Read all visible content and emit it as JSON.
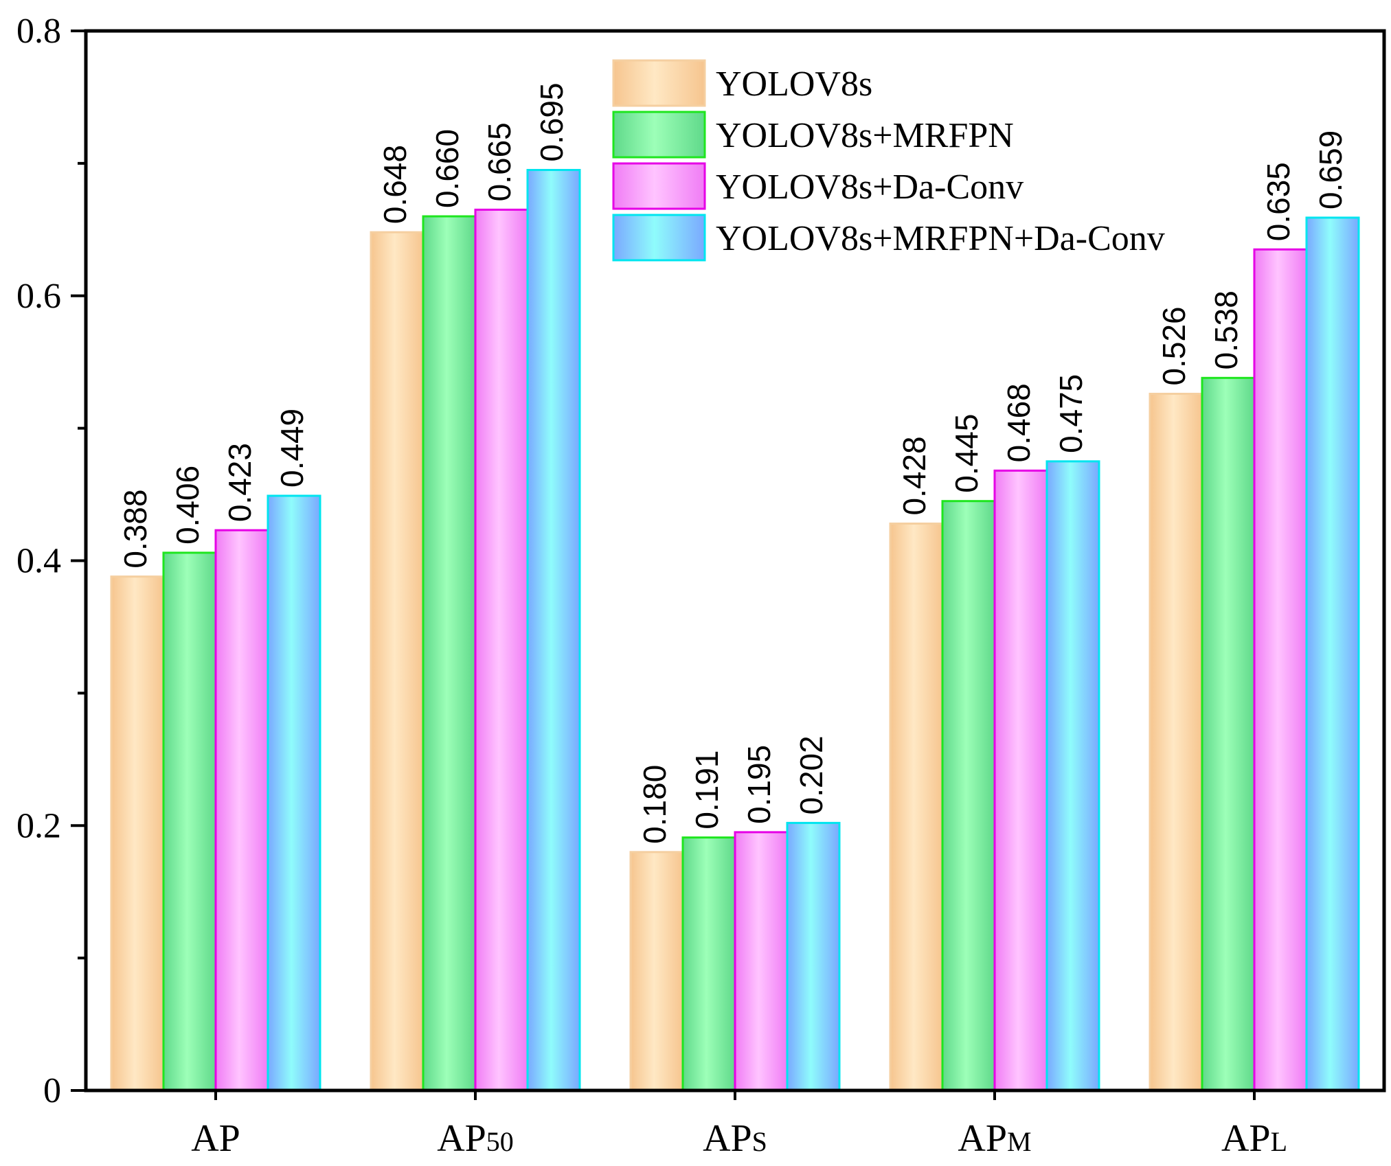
{
  "chart_data": {
    "type": "bar",
    "title": "",
    "xlabel": "",
    "ylabel": "",
    "ylim": [
      0,
      0.8
    ],
    "yticks": [
      "0",
      "0.2",
      "0.4",
      "0.6",
      "0.8"
    ],
    "categories": [
      {
        "main": "AP",
        "sub": ""
      },
      {
        "main": "AP",
        "sub": "50"
      },
      {
        "main": "AP",
        "sub": "S"
      },
      {
        "main": "AP",
        "sub": "M"
      },
      {
        "main": "AP",
        "sub": "L"
      }
    ],
    "series": [
      {
        "name": "YOLOV8s",
        "values": [
          0.388,
          0.648,
          0.18,
          0.428,
          0.526
        ],
        "labels": [
          "0.388",
          "0.648",
          "0.180",
          "0.428",
          "0.526"
        ],
        "fill_light": "#ffe8c4",
        "fill_dark": "#f6c58f",
        "stroke": "#f5cfa0"
      },
      {
        "name": "YOLOV8s+MRFPN",
        "values": [
          0.406,
          0.66,
          0.191,
          0.445,
          0.538
        ],
        "labels": [
          "0.406",
          "0.660",
          "0.191",
          "0.445",
          "0.538"
        ],
        "fill_light": "#9dffb8",
        "fill_dark": "#5fd98a",
        "stroke": "#1ee61e"
      },
      {
        "name": "YOLOV8s+Da-Conv",
        "values": [
          0.423,
          0.665,
          0.195,
          0.468,
          0.635
        ],
        "labels": [
          "0.423",
          "0.665",
          "0.195",
          "0.468",
          "0.635"
        ],
        "fill_light": "#ffc4ff",
        "fill_dark": "#f07cf5",
        "stroke": "#e600e6"
      },
      {
        "name": "YOLOV8s+MRFPN+Da-Conv",
        "values": [
          0.449,
          0.695,
          0.202,
          0.475,
          0.659
        ],
        "labels": [
          "0.449",
          "0.695",
          "0.202",
          "0.475",
          "0.659"
        ],
        "fill_light": "#8ffcfc",
        "fill_dark": "#7aa8ff",
        "stroke": "#00e5ef"
      }
    ],
    "legend_position": "top-center"
  }
}
